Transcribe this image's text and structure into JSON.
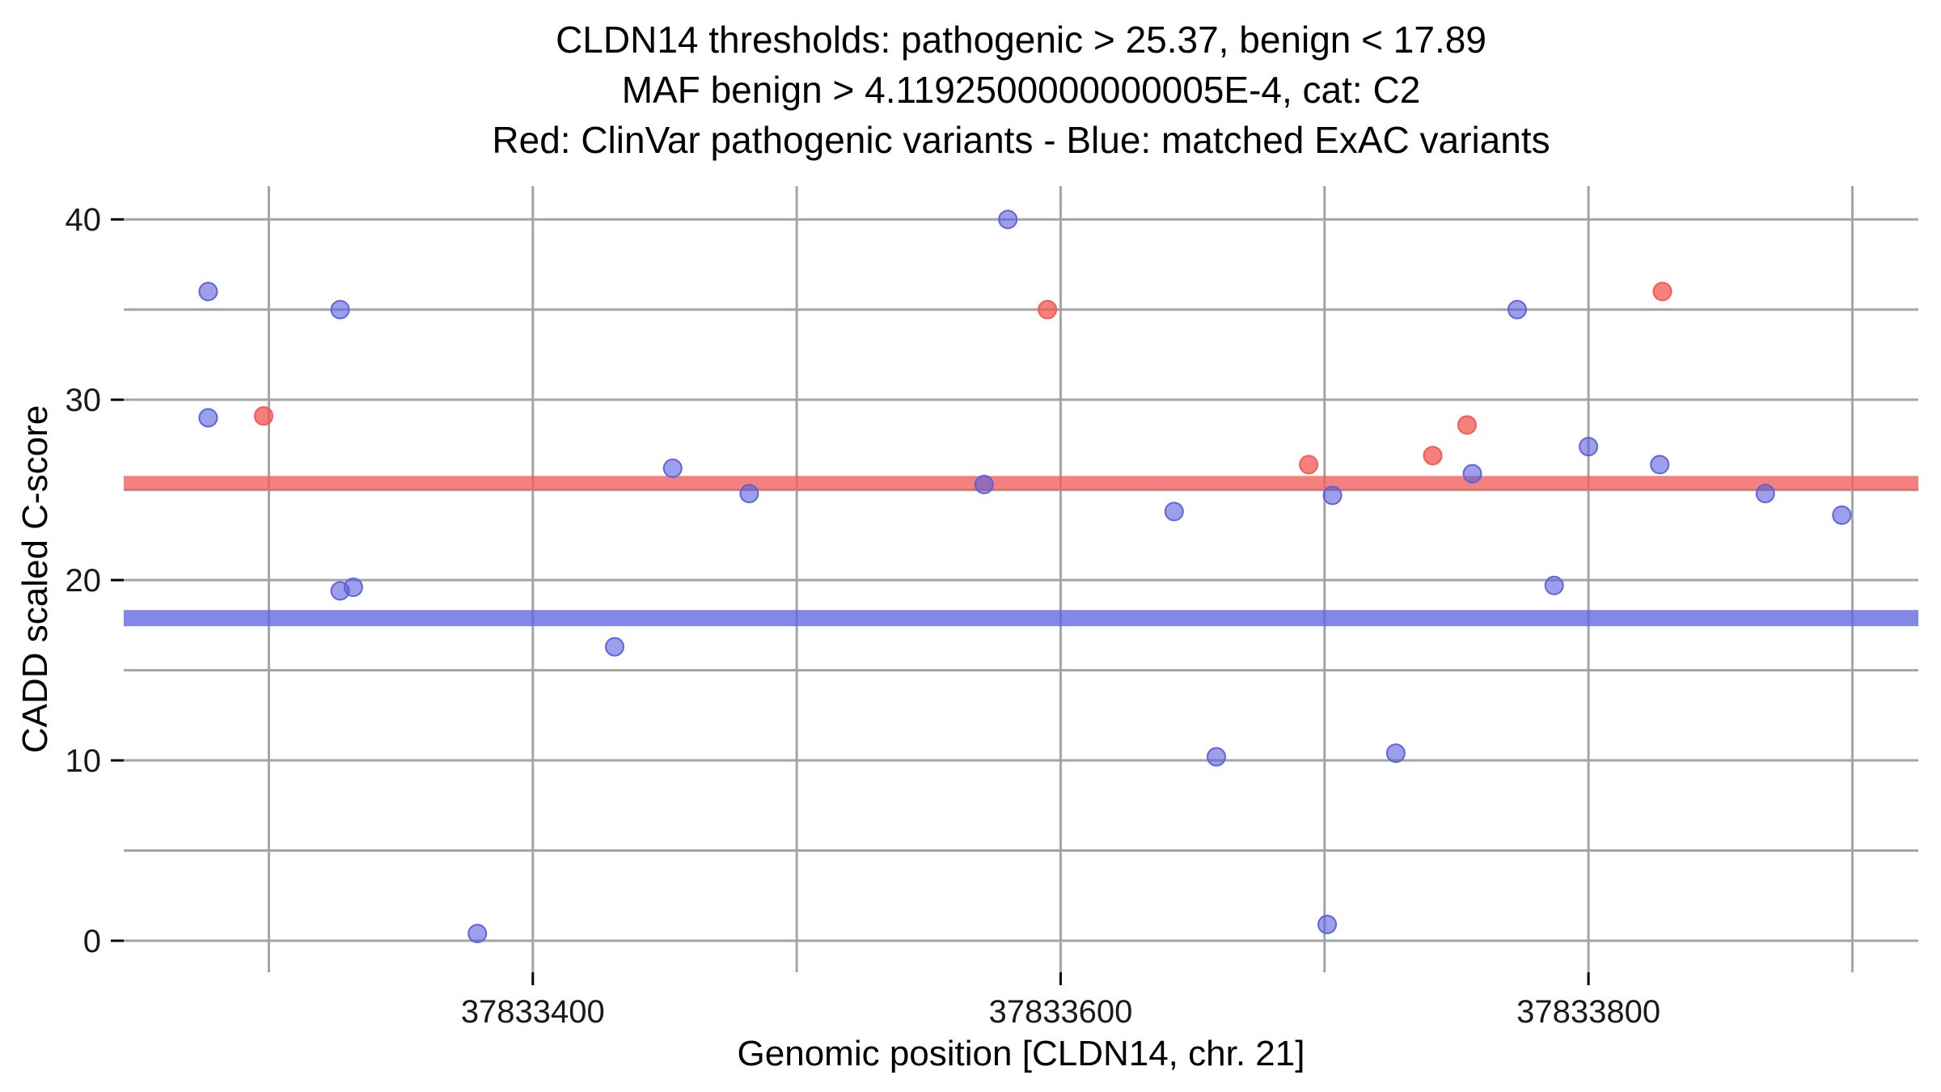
{
  "title": {
    "line1": "CLDN14 thresholds: pathogenic > 25.37, benign < 17.89",
    "line2": "MAF benign > 4.1192500000000005E-4, cat: C2",
    "line3": "Red: ClinVar pathogenic variants - Blue: matched ExAC variants"
  },
  "chart_data": {
    "type": "scatter",
    "xlabel": "Genomic position [CLDN14, chr. 21]",
    "ylabel": "CADD scaled C-score",
    "xlim": [
      37833245,
      37833925
    ],
    "ylim": [
      -1.75,
      41.85
    ],
    "x_ticks": [
      {
        "value": 37833400,
        "label": "37833400"
      },
      {
        "value": 37833600,
        "label": "37833600"
      },
      {
        "value": 37833800,
        "label": "37833800"
      }
    ],
    "y_ticks": [
      {
        "value": 0,
        "label": "0"
      },
      {
        "value": 10,
        "label": "10"
      },
      {
        "value": 20,
        "label": "20"
      },
      {
        "value": 30,
        "label": "30"
      },
      {
        "value": 40,
        "label": "40"
      }
    ],
    "x_gridlines": [
      37833300,
      37833400,
      37833500,
      37833600,
      37833700,
      37833800,
      37833900
    ],
    "y_gridlines": [
      0,
      5,
      10,
      15,
      20,
      25,
      30,
      35,
      40
    ],
    "thresholds": {
      "pathogenic": 25.37,
      "benign": 17.89
    },
    "colors": {
      "pathogenic_point": "#f25650",
      "benign_point": "#5a5fdc",
      "pathogenic_band": "#ef5d58",
      "benign_band": "#6065e0",
      "gridline": "#a4a4a4",
      "tick": "#000000"
    },
    "series": [
      {
        "name": "ClinVar pathogenic variants",
        "color_key": "pathogenic_point",
        "points": [
          {
            "x": 37833298,
            "y": 29.1
          },
          {
            "x": 37833595,
            "y": 35.0
          },
          {
            "x": 37833694,
            "y": 26.4
          },
          {
            "x": 37833741,
            "y": 26.9
          },
          {
            "x": 37833754,
            "y": 28.6
          },
          {
            "x": 37833828,
            "y": 36.0
          }
        ]
      },
      {
        "name": "matched ExAC variants",
        "color_key": "benign_point",
        "points": [
          {
            "x": 37833277,
            "y": 36.0
          },
          {
            "x": 37833277,
            "y": 29.0
          },
          {
            "x": 37833327,
            "y": 35.0
          },
          {
            "x": 37833327,
            "y": 19.4
          },
          {
            "x": 37833332,
            "y": 19.6
          },
          {
            "x": 37833379,
            "y": 0.4
          },
          {
            "x": 37833431,
            "y": 16.3
          },
          {
            "x": 37833453,
            "y": 26.2
          },
          {
            "x": 37833482,
            "y": 24.8
          },
          {
            "x": 37833571,
            "y": 25.3
          },
          {
            "x": 37833580,
            "y": 40.0
          },
          {
            "x": 37833643,
            "y": 23.8
          },
          {
            "x": 37833659,
            "y": 10.2
          },
          {
            "x": 37833701,
            "y": 0.9
          },
          {
            "x": 37833703,
            "y": 24.7
          },
          {
            "x": 37833727,
            "y": 10.4
          },
          {
            "x": 37833756,
            "y": 25.9
          },
          {
            "x": 37833773,
            "y": 35.0
          },
          {
            "x": 37833787,
            "y": 19.7
          },
          {
            "x": 37833800,
            "y": 27.4
          },
          {
            "x": 37833827,
            "y": 26.4
          },
          {
            "x": 37833867,
            "y": 24.8
          },
          {
            "x": 37833896,
            "y": 23.6
          }
        ]
      }
    ]
  }
}
